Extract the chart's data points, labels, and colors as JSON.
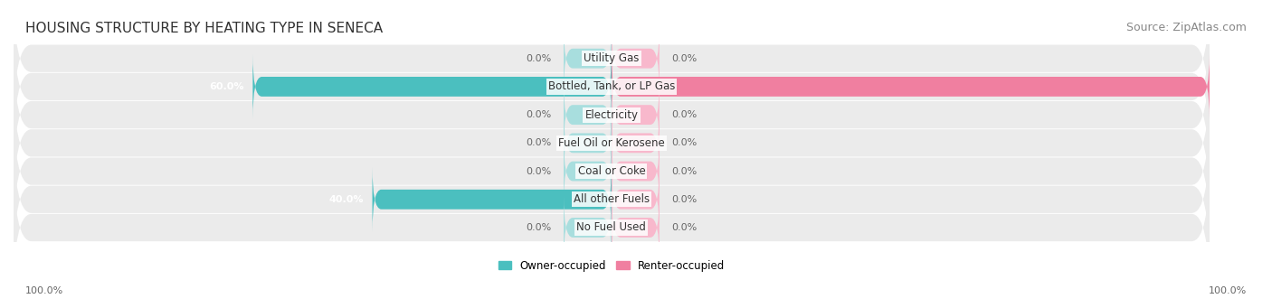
{
  "title": "HOUSING STRUCTURE BY HEATING TYPE IN SENECA",
  "source": "Source: ZipAtlas.com",
  "categories": [
    "Utility Gas",
    "Bottled, Tank, or LP Gas",
    "Electricity",
    "Fuel Oil or Kerosene",
    "Coal or Coke",
    "All other Fuels",
    "No Fuel Used"
  ],
  "owner_values": [
    0.0,
    60.0,
    0.0,
    0.0,
    0.0,
    40.0,
    0.0
  ],
  "renter_values": [
    0.0,
    100.0,
    0.0,
    0.0,
    0.0,
    0.0,
    0.0
  ],
  "owner_color": "#4bbfbf",
  "renter_color": "#f07fa0",
  "owner_color_light": "#a8dede",
  "renter_color_light": "#f8b8cc",
  "bar_bg_color": "#f0f0f0",
  "bar_row_bg": "#ebebeb",
  "axis_label_left": "100.0%",
  "axis_label_right": "100.0%",
  "legend_owner": "Owner-occupied",
  "legend_renter": "Renter-occupied",
  "max_value": 100.0,
  "title_fontsize": 11,
  "source_fontsize": 9,
  "label_fontsize": 8.5,
  "category_fontsize": 8.5,
  "value_fontsize": 8
}
